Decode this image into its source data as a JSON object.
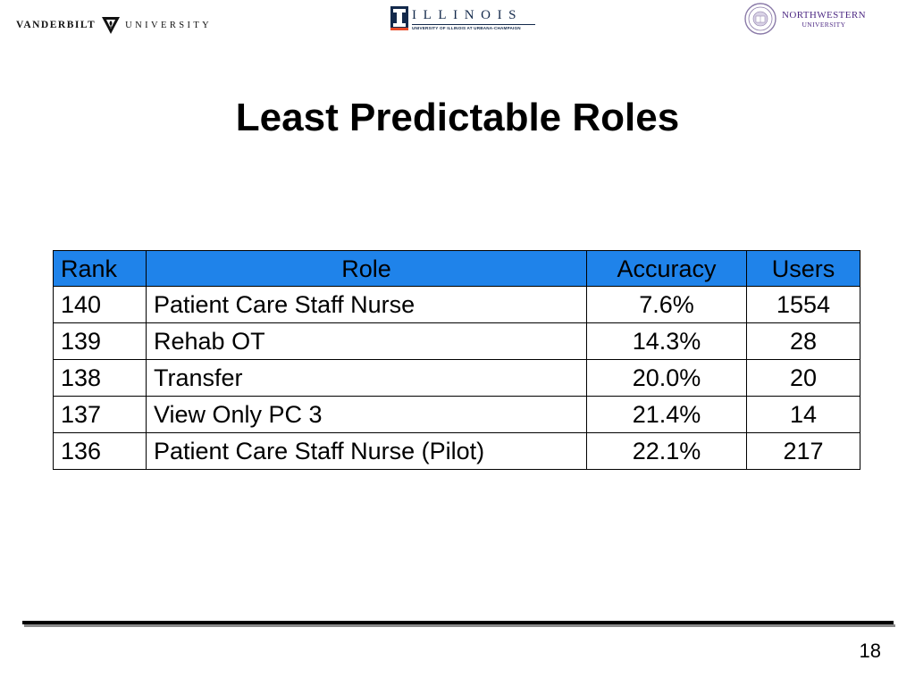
{
  "logos": {
    "vanderbilt": {
      "word_a": "VANDERBILT",
      "word_b": "UNIVERSITY",
      "mark_icon": "vanderbilt-v-oak-icon",
      "color": "#111111"
    },
    "illinois": {
      "wordmark": "ILLINOIS",
      "subline": "UNIVERSITY OF ILLINOIS AT URBANA-CHAMPAIGN",
      "mark_icon": "block-i-icon",
      "color": "#13294b"
    },
    "northwestern": {
      "name_line1": "NORTHWESTERN",
      "name_line2": "UNIVERSITY",
      "seal_icon": "northwestern-seal-icon",
      "color": "#4e2a84"
    }
  },
  "slide": {
    "title": "Least Predictable Roles",
    "page_number": "18"
  },
  "table": {
    "header_color": "#1f83ea",
    "columns": [
      "Rank",
      "Role",
      "Accuracy",
      "Users"
    ],
    "rows": [
      {
        "rank": "140",
        "role": "Patient Care Staff Nurse",
        "accuracy": "7.6%",
        "users": "1554"
      },
      {
        "rank": "139",
        "role": "Rehab OT",
        "accuracy": "14.3%",
        "users": "28"
      },
      {
        "rank": "138",
        "role": "Transfer",
        "accuracy": "20.0%",
        "users": "20"
      },
      {
        "rank": "137",
        "role": "View Only PC 3",
        "accuracy": "21.4%",
        "users": "14"
      },
      {
        "rank": "136",
        "role": "Patient Care Staff Nurse (Pilot)",
        "accuracy": "22.1%",
        "users": "217"
      }
    ]
  }
}
